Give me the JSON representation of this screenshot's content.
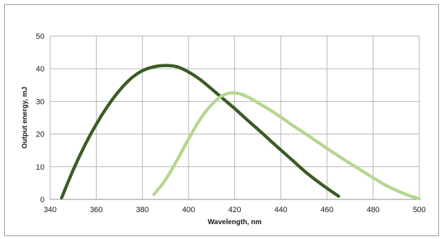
{
  "chart_data": {
    "type": "line",
    "title": "",
    "xlabel": "Wavelength, nm",
    "ylabel": "Output  energy, mJ",
    "xlim": [
      340,
      500
    ],
    "ylim": [
      0,
      50
    ],
    "xticks": [
      340,
      360,
      380,
      400,
      420,
      440,
      460,
      480,
      500
    ],
    "yticks": [
      0,
      10,
      20,
      30,
      40,
      50
    ],
    "grid": true,
    "legend": "none",
    "series": [
      {
        "color": "#3b5c26",
        "points": [
          [
            345,
            0.5
          ],
          [
            350,
            9
          ],
          [
            355,
            16.5
          ],
          [
            360,
            23
          ],
          [
            365,
            28.6
          ],
          [
            370,
            33.3
          ],
          [
            375,
            37
          ],
          [
            380,
            39.4
          ],
          [
            385,
            40.6
          ],
          [
            390,
            41
          ],
          [
            395,
            40.6
          ],
          [
            400,
            39
          ],
          [
            405,
            36.7
          ],
          [
            410,
            33.8
          ],
          [
            415,
            30.8
          ],
          [
            420,
            27.8
          ],
          [
            425,
            24.6
          ],
          [
            430,
            21.5
          ],
          [
            435,
            18.3
          ],
          [
            440,
            15.1
          ],
          [
            445,
            12
          ],
          [
            450,
            8.8
          ],
          [
            455,
            6
          ],
          [
            460,
            3.4
          ],
          [
            465,
            1
          ]
        ]
      },
      {
        "color": "#b6d68f",
        "points": [
          [
            385,
            1.5
          ],
          [
            390,
            6
          ],
          [
            395,
            12
          ],
          [
            400,
            18.5
          ],
          [
            405,
            24.5
          ],
          [
            410,
            29
          ],
          [
            415,
            31.9
          ],
          [
            420,
            32.6
          ],
          [
            425,
            31.6
          ],
          [
            430,
            29.6
          ],
          [
            435,
            27.5
          ],
          [
            440,
            25.2
          ],
          [
            445,
            22.7
          ],
          [
            450,
            20.4
          ],
          [
            455,
            18
          ],
          [
            460,
            15.6
          ],
          [
            465,
            13.3
          ],
          [
            470,
            11
          ],
          [
            475,
            8.8
          ],
          [
            480,
            6.6
          ],
          [
            485,
            4.5
          ],
          [
            490,
            2.8
          ],
          [
            495,
            1.3
          ],
          [
            500,
            0.2
          ]
        ]
      }
    ]
  }
}
